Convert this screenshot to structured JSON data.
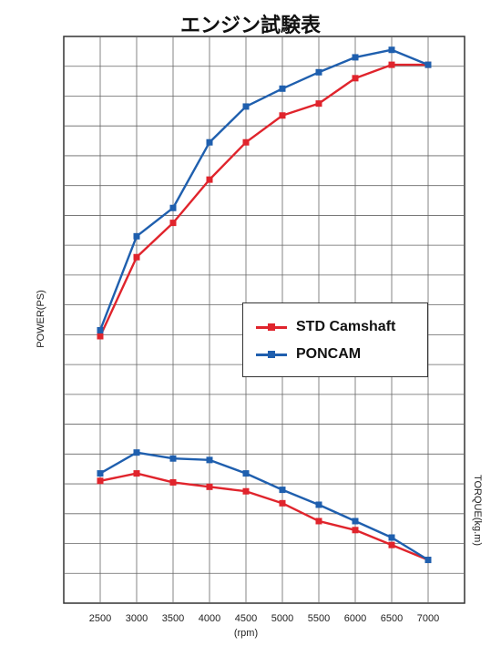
{
  "chart_data": {
    "type": "line",
    "title": "エンジン試験表",
    "xlabel": "(rpm)",
    "ylabel_left": "POWER(PS)",
    "ylabel_right": "TORQUE(kg.m)",
    "x": [
      2500,
      3000,
      3500,
      4000,
      4500,
      5000,
      5500,
      6000,
      6500,
      7000
    ],
    "xlim": [
      2000,
      7500
    ],
    "grid": true,
    "legend_position": "center-right",
    "units_note": "Vertical values are in grid-row units counted from the bottom of the plot (y-axes carry no printed tick values).",
    "ylim": [
      0,
      19
    ],
    "series": [
      {
        "name": "STD Camshaft",
        "group": "power",
        "color": "#e0242c",
        "values": [
          8.95,
          11.6,
          12.75,
          14.2,
          15.45,
          16.35,
          16.75,
          17.6,
          18.05,
          18.05
        ]
      },
      {
        "name": "PONCAM",
        "group": "power",
        "color": "#1f5fae",
        "values": [
          9.15,
          12.3,
          13.25,
          15.45,
          16.65,
          17.25,
          17.8,
          18.3,
          18.55,
          18.05
        ]
      },
      {
        "name": "STD Camshaft",
        "group": "torque",
        "color": "#e0242c",
        "values": [
          4.1,
          4.35,
          4.05,
          3.9,
          3.75,
          3.35,
          2.75,
          2.45,
          1.95,
          1.45
        ]
      },
      {
        "name": "PONCAM",
        "group": "torque",
        "color": "#1f5fae",
        "values": [
          4.35,
          5.05,
          4.85,
          4.8,
          4.35,
          3.8,
          3.3,
          2.75,
          2.2,
          1.45
        ]
      }
    ]
  },
  "legend": {
    "std_label": "STD Camshaft",
    "poncam_label": "PONCAM",
    "std_color": "#e0242c",
    "poncam_color": "#1f5fae"
  }
}
